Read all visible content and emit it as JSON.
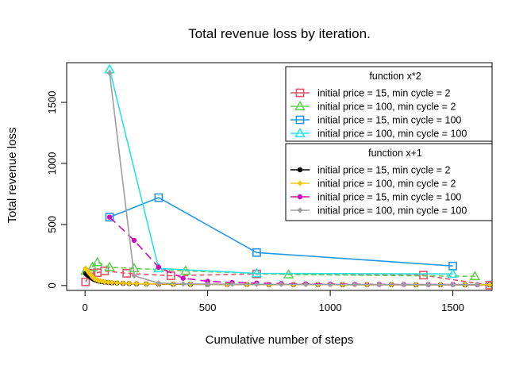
{
  "chart_data": {
    "type": "line",
    "title": "Total revenue loss by iteration.",
    "xlabel": "Cumulative number of steps",
    "ylabel": "Total revenue loss",
    "xlim": [
      -75,
      1660
    ],
    "ylim": [
      -40,
      1825
    ],
    "xticks": [
      0,
      500,
      1000,
      1500
    ],
    "yticks": [
      0,
      500,
      1000,
      1500
    ],
    "grid": false,
    "legends": [
      {
        "title": "function x*2",
        "placement": "top-right",
        "entries": [
          {
            "label": "initial price = 15, min cycle = 2",
            "color": "#DF536B",
            "marker": "open-square"
          },
          {
            "label": "initial price = 100, min cycle = 2",
            "color": "#61D04F",
            "marker": "open-triangle"
          },
          {
            "label": "initial price = 15, min cycle = 100",
            "color": "#2297E6",
            "marker": "open-square"
          },
          {
            "label": "initial price = 100, min cycle = 100",
            "color": "#28E2E5",
            "marker": "open-triangle"
          }
        ]
      },
      {
        "title": "function x+1",
        "placement": "right",
        "entries": [
          {
            "label": "initial price = 15, min cycle = 2",
            "color": "#000000",
            "marker": "filled-circle"
          },
          {
            "label": "initial price = 100, min cycle = 2",
            "color": "#F5C710",
            "marker": "filled-diamond"
          },
          {
            "label": "initial price = 15, min cycle = 100",
            "color": "#CD0BBC",
            "marker": "filled-circle"
          },
          {
            "label": "initial price = 100, min cycle = 100",
            "color": "#9E9E9E",
            "marker": "filled-diamond"
          }
        ]
      }
    ],
    "series": [
      {
        "color": "#DF536B",
        "marker": "open-square",
        "dash": "6,4",
        "x": [
          2,
          25,
          50,
          80,
          170,
          350,
          700,
          1380,
          1650
        ],
        "y": [
          30,
          100,
          105,
          120,
          100,
          80,
          95,
          85,
          2
        ]
      },
      {
        "color": "#61D04F",
        "marker": "open-triangle",
        "dash": "6,4",
        "x": [
          2,
          30,
          50,
          100,
          200,
          410,
          830,
          1590
        ],
        "y": [
          120,
          150,
          190,
          150,
          140,
          120,
          90,
          75
        ]
      },
      {
        "color": "#2297E6",
        "marker": "open-square",
        "dash": "",
        "x": [
          100,
          300,
          700,
          1500
        ],
        "y": [
          560,
          720,
          270,
          160
        ]
      },
      {
        "color": "#28E2E5",
        "marker": "open-triangle",
        "dash": "",
        "x": [
          100,
          300,
          700,
          1500
        ],
        "y": [
          1770,
          140,
          100,
          95
        ]
      },
      {
        "color": "#000000",
        "marker": "filled-circle",
        "dash": "",
        "x": [
          2,
          6,
          10,
          14,
          18,
          22,
          26,
          30,
          36,
          42,
          50,
          58,
          68,
          80,
          95,
          110,
          130,
          155,
          180,
          210,
          250,
          300,
          360,
          430,
          500,
          580,
          660,
          750,
          850,
          950,
          1050,
          1150,
          1250,
          1350,
          1450,
          1550,
          1650
        ],
        "y": [
          100,
          92,
          86,
          82,
          76,
          70,
          64,
          58,
          52,
          46,
          40,
          36,
          32,
          28,
          25,
          22,
          20,
          18,
          16,
          14,
          13,
          12,
          11,
          10,
          10,
          9,
          9,
          8,
          8,
          8,
          7,
          7,
          7,
          6,
          6,
          6,
          6
        ]
      },
      {
        "color": "#F5C710",
        "marker": "filled-diamond",
        "dash": "",
        "x": [
          2,
          6,
          10,
          14,
          18,
          22,
          26,
          30,
          36,
          42,
          50,
          58,
          68,
          80,
          95,
          110,
          130,
          155,
          180,
          210,
          250,
          300,
          360,
          430,
          500,
          580,
          660,
          750,
          850,
          950,
          1050,
          1150,
          1250,
          1350,
          1450,
          1550,
          1650
        ],
        "y": [
          140,
          130,
          120,
          110,
          100,
          90,
          80,
          70,
          60,
          52,
          45,
          40,
          35,
          30,
          27,
          24,
          21,
          19,
          17,
          15,
          14,
          13,
          12,
          11,
          10,
          9,
          9,
          8,
          8,
          8,
          7,
          7,
          7,
          6,
          6,
          6,
          6
        ]
      },
      {
        "color": "#CD0BBC",
        "marker": "filled-circle",
        "dash": "10,6",
        "x": [
          100,
          200,
          300,
          400,
          500,
          600,
          700,
          800,
          900,
          1000,
          1100,
          1200,
          1300,
          1400,
          1500,
          1600
        ],
        "y": [
          560,
          370,
          150,
          60,
          35,
          25,
          20,
          16,
          14,
          12,
          11,
          10,
          9,
          8,
          8,
          7
        ]
      },
      {
        "color": "#9E9E9E",
        "marker": "filled-diamond",
        "dash": "",
        "x": [
          100,
          200,
          300,
          400,
          500,
          600,
          700,
          800,
          900,
          1000,
          1100,
          1200,
          1300,
          1400,
          1500,
          1600
        ],
        "y": [
          1740,
          80,
          20,
          14,
          12,
          11,
          10,
          10,
          9,
          9,
          8,
          8,
          8,
          7,
          7,
          7
        ]
      }
    ]
  }
}
